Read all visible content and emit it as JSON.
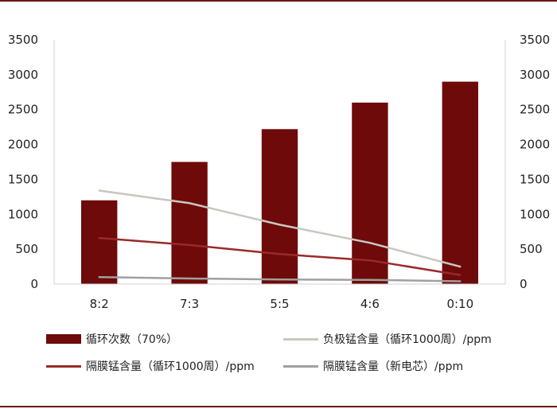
{
  "chart_data": {
    "type": "bar",
    "categories": [
      "8:2",
      "7:3",
      "5:5",
      "4:6",
      "0:10"
    ],
    "ylim": [
      0,
      3500
    ],
    "y_ticks": [
      "0",
      "500",
      "1000",
      "1500",
      "2000",
      "2500",
      "3000",
      "3500"
    ],
    "y2lim": [
      0,
      3500
    ],
    "y2_ticks": [
      "0",
      "500",
      "1000",
      "1500",
      "2000",
      "2500",
      "3000",
      "3500"
    ],
    "grid": false,
    "legend_position": "bottom",
    "series": [
      {
        "name": "循环次数（70%）",
        "kind": "bar",
        "axis": "left",
        "color": "#6e0a0a",
        "values": [
          1200,
          1750,
          2220,
          2600,
          2900
        ]
      },
      {
        "name": "负极锰含量（循环1000周）/ppm",
        "kind": "line",
        "axis": "right",
        "color": "#c8c8c0",
        "values": [
          1340,
          1160,
          850,
          590,
          250
        ]
      },
      {
        "name": "隔膜锰含量（循环1000周）/ppm",
        "kind": "line",
        "axis": "right",
        "color": "#9a2a2a",
        "values": [
          660,
          560,
          430,
          340,
          130
        ]
      },
      {
        "name": "隔膜锰含量（新电芯）/ppm",
        "kind": "line",
        "axis": "right",
        "color": "#a0a0a0",
        "values": [
          100,
          80,
          65,
          60,
          40
        ]
      }
    ]
  }
}
